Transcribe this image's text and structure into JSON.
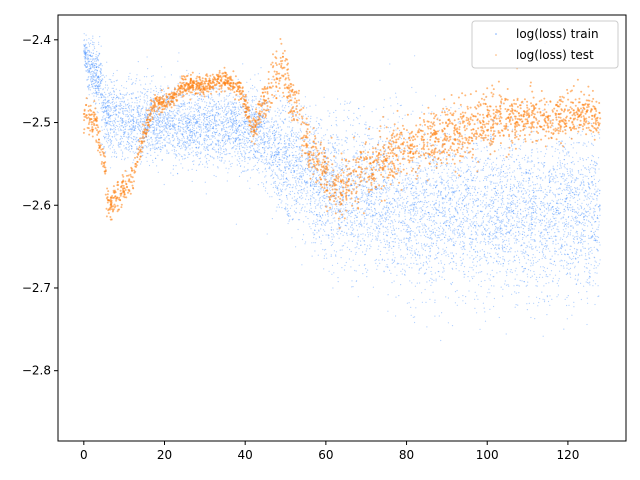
{
  "chart_data": {
    "type": "scatter",
    "title": "",
    "xlabel": "",
    "ylabel": "",
    "xlim": [
      -6.4,
      134.4
    ],
    "ylim": [
      -2.885,
      -2.37
    ],
    "xticks": [
      0,
      20,
      40,
      60,
      80,
      100,
      120
    ],
    "yticks": [
      -2.8,
      -2.7,
      -2.6,
      -2.5,
      -2.4
    ],
    "xtick_labels": [
      "0",
      "20",
      "40",
      "60",
      "80",
      "100",
      "120"
    ],
    "ytick_labels": [
      "−2.8",
      "−2.7",
      "−2.6",
      "−2.5",
      "−2.4"
    ],
    "grid": false,
    "legend_position": "top-right",
    "series": [
      {
        "name": "log(loss) train",
        "color": "#1f77ff",
        "marker_size": 0.6,
        "opacity": 0.35,
        "x_range": [
          0,
          128
        ],
        "trend": [
          {
            "x": 0,
            "y_mean": -2.41,
            "y_spread": 0.01
          },
          {
            "x": 1,
            "y_mean": -2.43,
            "y_spread": 0.03
          },
          {
            "x": 4,
            "y_mean": -2.45,
            "y_spread": 0.03
          },
          {
            "x": 5,
            "y_mean": -2.49,
            "y_spread": 0.04
          },
          {
            "x": 10,
            "y_mean": -2.5,
            "y_spread": 0.04
          },
          {
            "x": 20,
            "y_mean": -2.5,
            "y_spread": 0.04
          },
          {
            "x": 30,
            "y_mean": -2.505,
            "y_spread": 0.04
          },
          {
            "x": 44,
            "y_mean": -2.51,
            "y_spread": 0.04
          },
          {
            "x": 45,
            "y_mean": -2.53,
            "y_spread": 0.05
          },
          {
            "x": 60,
            "y_mean": -2.58,
            "y_spread": 0.07
          },
          {
            "x": 80,
            "y_mean": -2.6,
            "y_spread": 0.08
          },
          {
            "x": 100,
            "y_mean": -2.61,
            "y_spread": 0.08
          },
          {
            "x": 128,
            "y_mean": -2.61,
            "y_spread": 0.08
          }
        ]
      },
      {
        "name": "log(loss) test",
        "color": "#ff7f0e",
        "marker_size": 1.0,
        "opacity": 0.55,
        "x_range": [
          0,
          128
        ],
        "trend": [
          {
            "x": 0,
            "y_mean": -2.49,
            "y_spread": 0.015
          },
          {
            "x": 3,
            "y_mean": -2.5,
            "y_spread": 0.015
          },
          {
            "x": 5,
            "y_mean": -2.55,
            "y_spread": 0.015
          },
          {
            "x": 6,
            "y_mean": -2.6,
            "y_spread": 0.015
          },
          {
            "x": 8,
            "y_mean": -2.59,
            "y_spread": 0.015
          },
          {
            "x": 12,
            "y_mean": -2.57,
            "y_spread": 0.015
          },
          {
            "x": 14,
            "y_mean": -2.53,
            "y_spread": 0.01
          },
          {
            "x": 17,
            "y_mean": -2.48,
            "y_spread": 0.01
          },
          {
            "x": 22,
            "y_mean": -2.47,
            "y_spread": 0.01
          },
          {
            "x": 25,
            "y_mean": -2.455,
            "y_spread": 0.01
          },
          {
            "x": 30,
            "y_mean": -2.455,
            "y_spread": 0.01
          },
          {
            "x": 35,
            "y_mean": -2.448,
            "y_spread": 0.01
          },
          {
            "x": 39,
            "y_mean": -2.46,
            "y_spread": 0.01
          },
          {
            "x": 42,
            "y_mean": -2.51,
            "y_spread": 0.015
          },
          {
            "x": 45,
            "y_mean": -2.47,
            "y_spread": 0.02
          },
          {
            "x": 49,
            "y_mean": -2.43,
            "y_spread": 0.025
          },
          {
            "x": 55,
            "y_mean": -2.52,
            "y_spread": 0.025
          },
          {
            "x": 62,
            "y_mean": -2.58,
            "y_spread": 0.03
          },
          {
            "x": 70,
            "y_mean": -2.56,
            "y_spread": 0.03
          },
          {
            "x": 80,
            "y_mean": -2.53,
            "y_spread": 0.03
          },
          {
            "x": 100,
            "y_mean": -2.5,
            "y_spread": 0.03
          },
          {
            "x": 128,
            "y_mean": -2.49,
            "y_spread": 0.02
          }
        ]
      }
    ]
  }
}
